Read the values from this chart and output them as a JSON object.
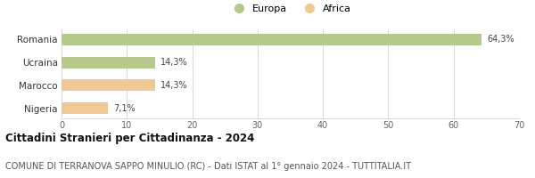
{
  "categories": [
    "Nigeria",
    "Marocco",
    "Ucraina",
    "Romania"
  ],
  "values": [
    7.1,
    14.3,
    14.3,
    64.3
  ],
  "labels": [
    "7,1%",
    "14,3%",
    "14,3%",
    "64,3%"
  ],
  "colors": [
    "#f0c896",
    "#f0c896",
    "#b5c98a",
    "#b5c98a"
  ],
  "legend_items": [
    {
      "label": "Europa",
      "color": "#b5c98a"
    },
    {
      "label": "Africa",
      "color": "#f0c896"
    }
  ],
  "xlim": [
    0,
    70
  ],
  "xticks": [
    0,
    10,
    20,
    30,
    40,
    50,
    60,
    70
  ],
  "title": "Cittadini Stranieri per Cittadinanza - 2024",
  "subtitle": "COMUNE DI TERRANOVA SAPPO MINULIO (RC) - Dati ISTAT al 1° gennaio 2024 - TUTTITALIA.IT",
  "title_fontsize": 8.5,
  "subtitle_fontsize": 7.0,
  "bar_height": 0.5,
  "background_color": "#ffffff",
  "grid_color": "#d8d8d8",
  "label_fontsize": 7.0,
  "tick_fontsize": 7.0,
  "category_fontsize": 7.5
}
